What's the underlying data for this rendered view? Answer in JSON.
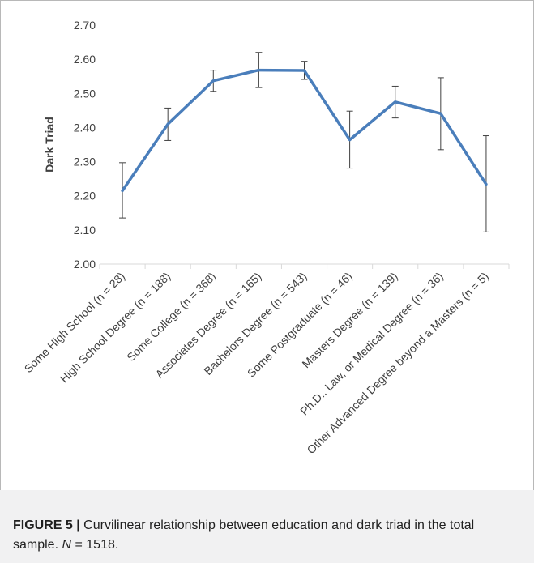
{
  "chart_data": {
    "type": "line",
    "ylabel": "Dark Triad",
    "ylim": [
      2.0,
      2.7
    ],
    "yticks": [
      "2.00",
      "2.10",
      "2.20",
      "2.30",
      "2.40",
      "2.50",
      "2.60",
      "2.70"
    ],
    "categories": [
      "Some High School (n = 28)",
      "High School Degree (n = 188)",
      "Some College (n = 368)",
      "Associates Degree (n = 165)",
      "Bachelors Degree (n = 543)",
      "Some Postgraduate (n = 46)",
      "Masters Degree (n = 139)",
      "Ph.D., Law, or Medical Degree (n = 36)",
      "Other Advanced Degree beyond a Masters  (n = 5)"
    ],
    "series": [
      {
        "values": [
          2.215,
          2.41,
          2.537,
          2.568,
          2.567,
          2.364,
          2.475,
          2.441,
          2.234
        ],
        "error_low": [
          2.135,
          2.362,
          2.506,
          2.517,
          2.541,
          2.281,
          2.428,
          2.335,
          2.094
        ],
        "error_high": [
          2.297,
          2.457,
          2.568,
          2.62,
          2.594,
          2.448,
          2.521,
          2.546,
          2.376
        ],
        "color": "#4a7ebb"
      }
    ],
    "grid": false
  },
  "caption": {
    "label": "FIGURE 5 |",
    "text_before_n": " Curvilinear relationship between education and dark triad in the total sample. ",
    "n_symbol": "N",
    "n_value": " = 1518."
  }
}
